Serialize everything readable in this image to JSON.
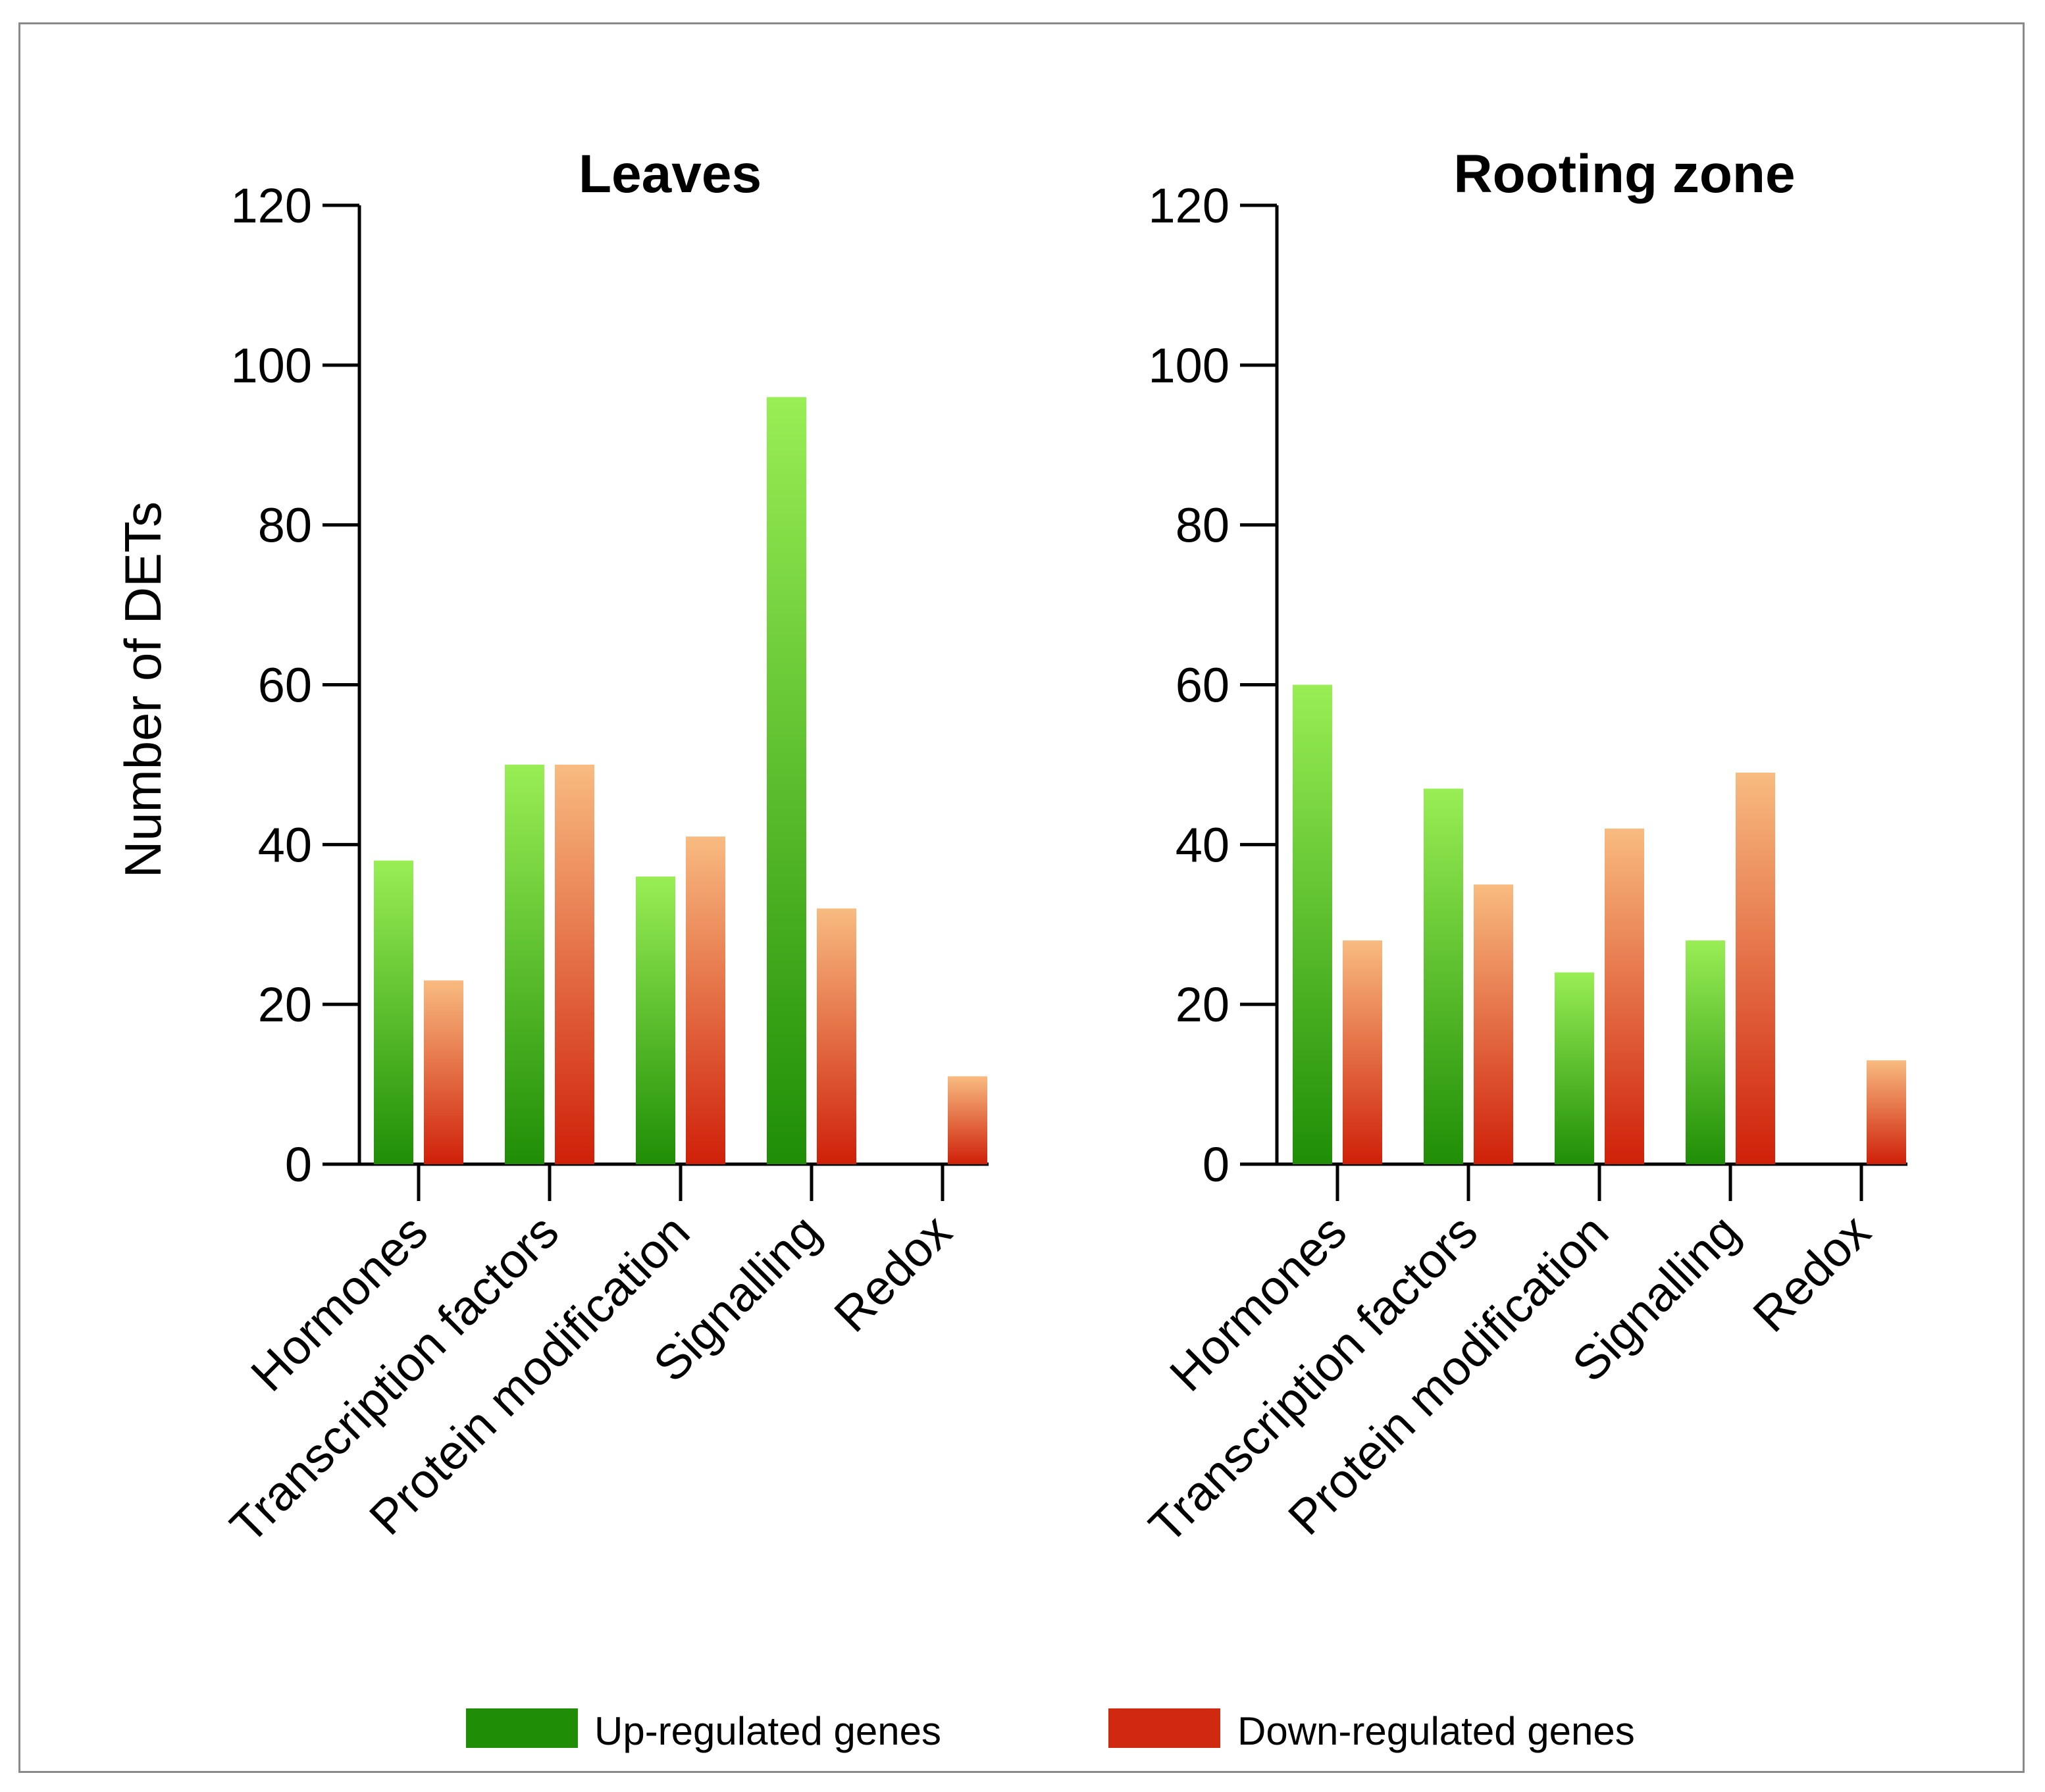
{
  "chart_data": [
    {
      "type": "bar",
      "title": "Leaves",
      "categories": [
        "Hormones",
        "Transcription factors",
        "Protein modification",
        "Signalling",
        "Redox"
      ],
      "series": [
        {
          "name": "Up-regulated genes",
          "values": [
            38,
            50,
            36,
            96,
            0
          ]
        },
        {
          "name": "Down-regulated genes",
          "values": [
            23,
            50,
            41,
            32,
            11
          ]
        }
      ],
      "ylabel": "Number of DETs",
      "ylim": [
        0,
        120
      ],
      "yticks": [
        "0",
        "20",
        "40",
        "60",
        "80",
        "100",
        "120"
      ]
    },
    {
      "type": "bar",
      "title": "Rooting zone",
      "categories": [
        "Hormones",
        "Transcription factors",
        "Protein modification",
        "Signalling",
        "Redox"
      ],
      "series": [
        {
          "name": "Up-regulated genes",
          "values": [
            60,
            47,
            24,
            28,
            0
          ]
        },
        {
          "name": "Down-regulated genes",
          "values": [
            28,
            35,
            42,
            49,
            13
          ]
        }
      ],
      "ylabel": "",
      "ylim": [
        0,
        120
      ],
      "yticks": [
        "0",
        "20",
        "40",
        "60",
        "80",
        "100",
        "120"
      ]
    }
  ],
  "legend": {
    "up_label": "Up-regulated genes",
    "down_label": "Down-regulated genes"
  },
  "colors": {
    "up_top": "#99ee55",
    "up_bottom": "#1f8e06",
    "down_top": "#f8bb80",
    "down_bottom": "#cf2008",
    "up_legend": "#1f8e06",
    "down_legend": "#cf2a10"
  }
}
